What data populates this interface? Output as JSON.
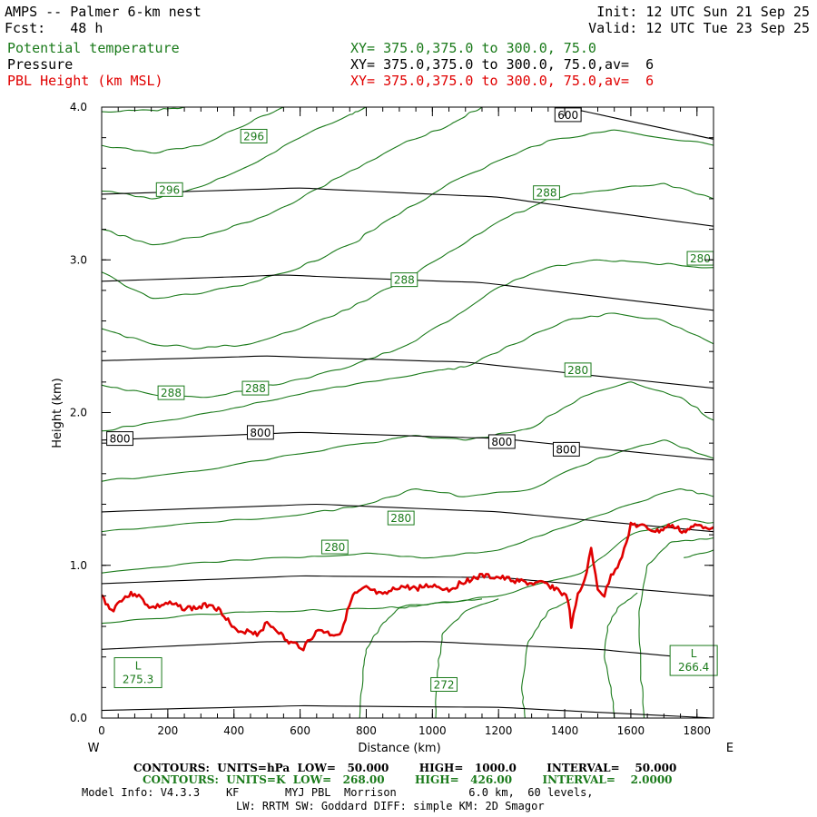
{
  "header": {
    "title": "AMPS -- Palmer 6-km nest",
    "forecast": "Fcst:   48 h",
    "init": "Init: 12 UTC Sun 21 Sep 25",
    "valid": "Valid: 12 UTC Tue 23 Sep 25",
    "fields": [
      {
        "name": "Potential temperature",
        "xy": "XY= 375.0,375.0 to 300.0, 75.0",
        "color": "#1a7a1a"
      },
      {
        "name": "Pressure",
        "xy": "XY= 375.0,375.0 to 300.0, 75.0,av=  6",
        "color": "#000000"
      },
      {
        "name": "PBL Height (km MSL)",
        "xy": "XY= 375.0,375.0 to 300.0, 75.0,av=  6",
        "color": "#e00000"
      }
    ]
  },
  "chart_data": {
    "type": "line",
    "xlabel": "Distance (km)",
    "ylabel": "Height (km)",
    "xlim": [
      0,
      1850
    ],
    "ylim": [
      0,
      4.0
    ],
    "x_ticks": [
      "0",
      "200",
      "400",
      "600",
      "800",
      "1000",
      "1200",
      "1400",
      "1600",
      "1800"
    ],
    "y_ticks": [
      "0.0",
      "1.0",
      "2.0",
      "3.0",
      "4.0"
    ],
    "left_end": "W",
    "right_end": "E",
    "pressure_contours": [
      {
        "label": "",
        "points": [
          [
            0,
            0.05
          ],
          [
            600,
            0.08
          ],
          [
            1200,
            0.07
          ],
          [
            1850,
            0.0
          ]
        ]
      },
      {
        "label": "",
        "points": [
          [
            0,
            0.45
          ],
          [
            500,
            0.5
          ],
          [
            1000,
            0.5
          ],
          [
            1500,
            0.45
          ],
          [
            1850,
            0.38
          ]
        ]
      },
      {
        "label": "",
        "points": [
          [
            0,
            0.88
          ],
          [
            600,
            0.93
          ],
          [
            1200,
            0.92
          ],
          [
            1850,
            0.8
          ]
        ]
      },
      {
        "label": "",
        "points": [
          [
            0,
            1.35
          ],
          [
            650,
            1.4
          ],
          [
            1200,
            1.35
          ],
          [
            1850,
            1.22
          ]
        ]
      },
      {
        "label": "800",
        "points": [
          [
            0,
            1.82
          ],
          [
            600,
            1.87
          ],
          [
            1200,
            1.83
          ],
          [
            1850,
            1.69
          ]
        ]
      },
      {
        "label": "",
        "points": [
          [
            0,
            2.34
          ],
          [
            500,
            2.37
          ],
          [
            1100,
            2.33
          ],
          [
            1850,
            2.16
          ]
        ]
      },
      {
        "label": "",
        "points": [
          [
            0,
            2.86
          ],
          [
            550,
            2.9
          ],
          [
            1150,
            2.85
          ],
          [
            1850,
            2.67
          ]
        ]
      },
      {
        "label": "",
        "points": [
          [
            0,
            3.43
          ],
          [
            600,
            3.47
          ],
          [
            1200,
            3.41
          ],
          [
            1850,
            3.22
          ]
        ]
      },
      {
        "label": "600",
        "points": [
          [
            1400,
            4.0
          ],
          [
            1850,
            3.79
          ]
        ]
      }
    ],
    "pressure_labels": [
      {
        "text": "800",
        "x": 55,
        "y": 1.83
      },
      {
        "text": "800",
        "x": 480,
        "y": 1.87
      },
      {
        "text": "800",
        "x": 1210,
        "y": 1.81
      },
      {
        "text": "800",
        "x": 1405,
        "y": 1.76
      },
      {
        "text": "600",
        "x": 1410,
        "y": 3.95
      }
    ],
    "theta_labels": [
      {
        "text": "296",
        "x": 460,
        "y": 3.81
      },
      {
        "text": "296",
        "x": 205,
        "y": 3.46
      },
      {
        "text": "288",
        "x": 1345,
        "y": 3.44
      },
      {
        "text": "288",
        "x": 915,
        "y": 2.87
      },
      {
        "text": "288",
        "x": 210,
        "y": 2.13
      },
      {
        "text": "288",
        "x": 465,
        "y": 2.16
      },
      {
        "text": "280",
        "x": 1810,
        "y": 3.01
      },
      {
        "text": "280",
        "x": 1440,
        "y": 2.28
      },
      {
        "text": "280",
        "x": 905,
        "y": 1.31
      },
      {
        "text": "280",
        "x": 705,
        "y": 1.12
      },
      {
        "text": "272",
        "x": 1035,
        "y": 0.22
      }
    ],
    "lows": [
      {
        "text": "L",
        "value": "275.3",
        "x": 110,
        "y": 0.3
      },
      {
        "text": "L",
        "value": "266.4",
        "x": 1790,
        "y": 0.38
      }
    ],
    "pbl_height": {
      "name": "PBL Height (km MSL)",
      "color": "#e00000",
      "x": [
        0,
        30,
        60,
        100,
        150,
        200,
        250,
        290,
        330,
        370,
        400,
        420,
        440,
        470,
        500,
        530,
        560,
        590,
        610,
        630,
        660,
        690,
        720,
        760,
        800,
        850,
        900,
        950,
        1000,
        1050,
        1100,
        1150,
        1200,
        1250,
        1300,
        1340,
        1380,
        1410,
        1420,
        1440,
        1460,
        1480,
        1500,
        1520,
        1540,
        1560,
        1580,
        1600,
        1640,
        1680,
        1720,
        1760,
        1800,
        1850
      ],
      "y": [
        0.8,
        0.7,
        0.78,
        0.82,
        0.72,
        0.75,
        0.72,
        0.72,
        0.75,
        0.68,
        0.58,
        0.55,
        0.58,
        0.55,
        0.62,
        0.58,
        0.5,
        0.48,
        0.46,
        0.52,
        0.58,
        0.55,
        0.55,
        0.8,
        0.85,
        0.8,
        0.86,
        0.85,
        0.87,
        0.84,
        0.9,
        0.93,
        0.92,
        0.9,
        0.88,
        0.88,
        0.84,
        0.78,
        0.6,
        0.8,
        0.9,
        1.1,
        0.85,
        0.8,
        0.93,
        1.0,
        1.1,
        1.27,
        1.25,
        1.22,
        1.26,
        1.22,
        1.26,
        1.25
      ]
    },
    "theta_contours": [
      {
        "points": [
          [
            0,
            0.62
          ],
          [
            300,
            0.68
          ],
          [
            600,
            0.7
          ],
          [
            850,
            0.72
          ],
          [
            1000,
            0.75
          ],
          [
            1200,
            0.8
          ],
          [
            1450,
            0.95
          ],
          [
            1600,
            1.2
          ],
          [
            1750,
            1.3
          ],
          [
            1850,
            1.28
          ]
        ]
      },
      {
        "points": [
          [
            0,
            0.95
          ],
          [
            300,
            1.02
          ],
          [
            600,
            1.05
          ],
          [
            800,
            1.08
          ],
          [
            1000,
            1.05
          ],
          [
            1200,
            1.1
          ],
          [
            1400,
            1.25
          ],
          [
            1600,
            1.4
          ],
          [
            1750,
            1.5
          ],
          [
            1850,
            1.45
          ]
        ]
      },
      {
        "points": [
          [
            0,
            1.22
          ],
          [
            300,
            1.28
          ],
          [
            600,
            1.33
          ],
          [
            800,
            1.4
          ],
          [
            950,
            1.5
          ],
          [
            1100,
            1.45
          ],
          [
            1300,
            1.5
          ],
          [
            1500,
            1.7
          ],
          [
            1700,
            1.82
          ],
          [
            1850,
            1.7
          ]
        ]
      },
      {
        "points": [
          [
            0,
            1.55
          ],
          [
            300,
            1.62
          ],
          [
            600,
            1.73
          ],
          [
            800,
            1.8
          ],
          [
            950,
            1.85
          ],
          [
            1100,
            1.82
          ],
          [
            1300,
            1.9
          ],
          [
            1450,
            2.1
          ],
          [
            1600,
            2.2
          ],
          [
            1750,
            2.1
          ],
          [
            1850,
            1.95
          ]
        ]
      },
      {
        "points": [
          [
            0,
            1.88
          ],
          [
            200,
            1.95
          ],
          [
            400,
            2.03
          ],
          [
            600,
            2.12
          ],
          [
            800,
            2.2
          ],
          [
            1000,
            2.27
          ],
          [
            1100,
            2.3
          ],
          [
            1250,
            2.45
          ],
          [
            1400,
            2.6
          ],
          [
            1550,
            2.65
          ],
          [
            1700,
            2.6
          ],
          [
            1850,
            2.45
          ]
        ]
      },
      {
        "points": [
          [
            0,
            2.18
          ],
          [
            150,
            2.12
          ],
          [
            300,
            2.1
          ],
          [
            450,
            2.15
          ],
          [
            600,
            2.22
          ],
          [
            750,
            2.3
          ],
          [
            900,
            2.42
          ],
          [
            1050,
            2.6
          ],
          [
            1200,
            2.82
          ],
          [
            1350,
            2.95
          ],
          [
            1500,
            3.0
          ],
          [
            1650,
            2.98
          ],
          [
            1850,
            2.95
          ]
        ]
      },
      {
        "points": [
          [
            0,
            2.55
          ],
          [
            150,
            2.45
          ],
          [
            300,
            2.42
          ],
          [
            450,
            2.45
          ],
          [
            600,
            2.55
          ],
          [
            750,
            2.68
          ],
          [
            900,
            2.85
          ],
          [
            1050,
            3.05
          ],
          [
            1200,
            3.25
          ],
          [
            1350,
            3.4
          ],
          [
            1500,
            3.45
          ],
          [
            1700,
            3.5
          ],
          [
            1850,
            3.4
          ]
        ]
      },
      {
        "points": [
          [
            0,
            2.92
          ],
          [
            150,
            2.75
          ],
          [
            300,
            2.78
          ],
          [
            450,
            2.85
          ],
          [
            600,
            2.95
          ],
          [
            750,
            3.1
          ],
          [
            900,
            3.3
          ],
          [
            1050,
            3.5
          ],
          [
            1200,
            3.65
          ],
          [
            1350,
            3.78
          ],
          [
            1550,
            3.85
          ],
          [
            1850,
            3.75
          ]
        ]
      },
      {
        "points": [
          [
            0,
            3.2
          ],
          [
            150,
            3.1
          ],
          [
            300,
            3.15
          ],
          [
            450,
            3.25
          ],
          [
            600,
            3.4
          ],
          [
            750,
            3.58
          ],
          [
            900,
            3.75
          ],
          [
            1050,
            3.88
          ],
          [
            1150,
            4.0
          ]
        ]
      },
      {
        "points": [
          [
            0,
            3.45
          ],
          [
            150,
            3.4
          ],
          [
            300,
            3.48
          ],
          [
            450,
            3.62
          ],
          [
            600,
            3.8
          ],
          [
            750,
            3.95
          ],
          [
            800,
            4.0
          ]
        ]
      },
      {
        "points": [
          [
            0,
            3.75
          ],
          [
            150,
            3.7
          ],
          [
            300,
            3.75
          ],
          [
            450,
            3.9
          ],
          [
            550,
            4.0
          ]
        ]
      },
      {
        "points": [
          [
            0,
            3.97
          ],
          [
            150,
            3.98
          ],
          [
            250,
            4.0
          ]
        ]
      }
    ],
    "theta_lower_contours": [
      {
        "points": [
          [
            780,
            0.0
          ],
          [
            790,
            0.3
          ],
          [
            800,
            0.45
          ],
          [
            850,
            0.62
          ],
          [
            900,
            0.72
          ],
          [
            1000,
            0.75
          ],
          [
            1150,
            0.78
          ]
        ]
      },
      {
        "points": [
          [
            1010,
            0.0
          ],
          [
            1015,
            0.3
          ],
          [
            1030,
            0.55
          ],
          [
            1100,
            0.7
          ],
          [
            1200,
            0.78
          ]
        ]
      },
      {
        "points": [
          [
            1280,
            0.0
          ],
          [
            1270,
            0.2
          ],
          [
            1290,
            0.5
          ],
          [
            1350,
            0.7
          ],
          [
            1420,
            0.78
          ]
        ]
      },
      {
        "points": [
          [
            1550,
            0.0
          ],
          [
            1540,
            0.2
          ],
          [
            1520,
            0.4
          ],
          [
            1530,
            0.6
          ],
          [
            1560,
            0.72
          ],
          [
            1620,
            0.82
          ]
        ]
      },
      {
        "points": [
          [
            1640,
            0.0
          ],
          [
            1630,
            0.3
          ],
          [
            1625,
            0.7
          ],
          [
            1650,
            1.0
          ],
          [
            1720,
            1.15
          ],
          [
            1850,
            1.18
          ]
        ]
      },
      {
        "points": [
          [
            1760,
            1.05
          ],
          [
            1850,
            1.1
          ]
        ]
      }
    ]
  },
  "footer": {
    "contours1": "CONTOURS:  UNITS=hPa  LOW=   50.000        HIGH=   1000.0        INTERVAL=    50.000",
    "contours2": "CONTOURS:  UNITS=K  LOW=   268.00        HIGH=   426.00        INTERVAL=    2.0000",
    "model1": "Model Info: V4.3.3    KF       MYJ PBL  Morrison           6.0 km,  60 levels,",
    "model2": "LW: RRTM SW: Goddard DIFF: simple KM: 2D Smagor"
  }
}
